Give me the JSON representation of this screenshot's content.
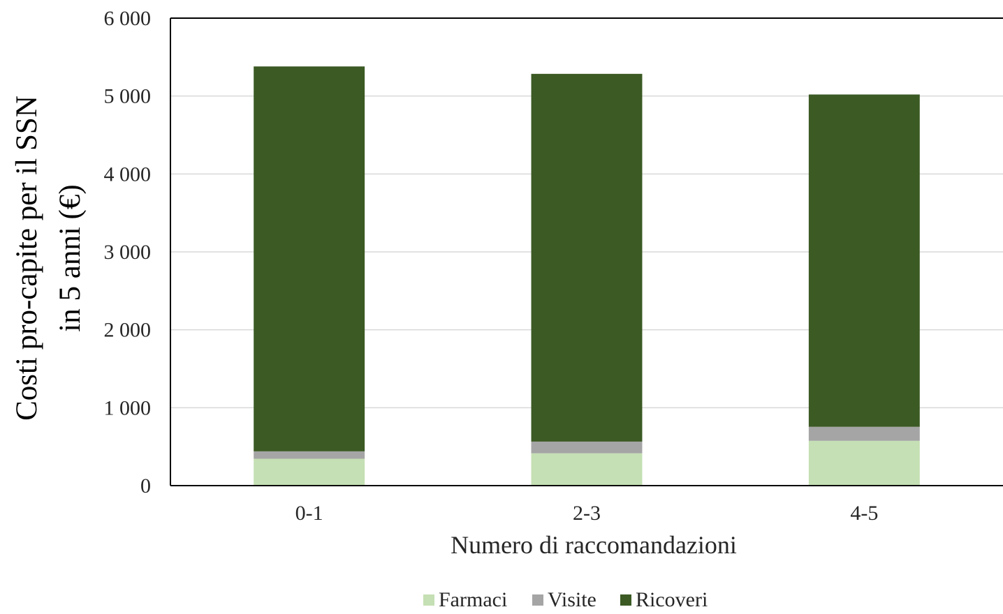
{
  "chart_data": {
    "type": "bar",
    "stacked": true,
    "title": "",
    "xlabel": "Numero di raccomandazioni",
    "ylabel_lines": [
      "Costi pro-capite per il SSN",
      "in 5 anni (€)"
    ],
    "categories": [
      "0-1",
      "2-3",
      "4-5"
    ],
    "series": [
      {
        "name": "Farmaci",
        "color": "#c5e0b4",
        "values": [
          345,
          415,
          575
        ]
      },
      {
        "name": "Visite",
        "color": "#a5a5a5",
        "values": [
          95,
          150,
          180
        ]
      },
      {
        "name": "Ricoveri",
        "color": "#3b5a24",
        "values": [
          4940,
          4720,
          4265
        ]
      }
    ],
    "ylim": [
      0,
      6000
    ],
    "yticks": [
      0,
      1000,
      2000,
      3000,
      4000,
      5000,
      6000
    ],
    "ytick_labels": [
      "0",
      "1 000",
      "2 000",
      "3 000",
      "4 000",
      "5 000",
      "6 000"
    ],
    "grid": true,
    "legend_position": "bottom-center"
  }
}
